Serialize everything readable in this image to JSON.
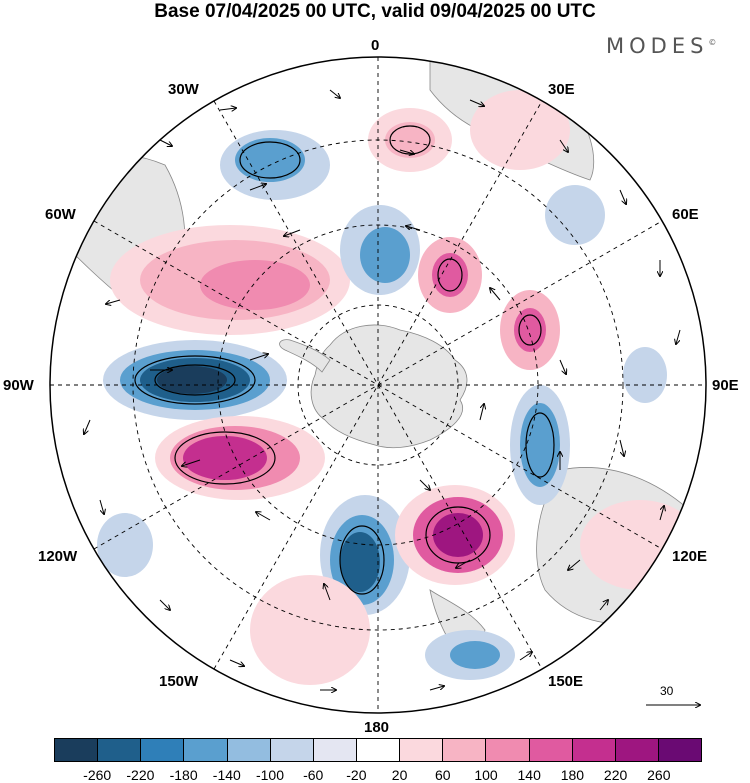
{
  "title": "Base 07/04/2025 00 UTC, valid 09/04/2025 00 UTC",
  "brand": "MODES",
  "brand_mark": "©",
  "longitude_labels": {
    "lon_0": "0",
    "lon_30e": "30E",
    "lon_60e": "60E",
    "lon_90e": "90E",
    "lon_120e": "120E",
    "lon_150e": "150E",
    "lon_180": "180",
    "lon_150w": "150W",
    "lon_120w": "120W",
    "lon_90w": "90W",
    "lon_60w": "60W",
    "lon_30w": "30W"
  },
  "reference_vector": {
    "label": "30"
  },
  "colorbar": {
    "ticks": [
      "-260",
      "-220",
      "-180",
      "-140",
      "-100",
      "-60",
      "-20",
      "20",
      "60",
      "100",
      "140",
      "180",
      "220",
      "260"
    ],
    "colors": [
      "#1a3d5c",
      "#1f5f8b",
      "#2f7fb8",
      "#5a9fcf",
      "#93bde0",
      "#c5d5ea",
      "#e4e6f2",
      "#ffffff",
      "#fbd9de",
      "#f7b4c4",
      "#f08bb0",
      "#e05aa0",
      "#c42f8f",
      "#9e1680",
      "#6a0a73"
    ]
  },
  "map": {
    "projection": "south-polar-stereographic",
    "anomaly_colors": {
      "negative": "#2f7fb8",
      "positive": "#e05aa0",
      "land": "#e8e8e8"
    }
  }
}
